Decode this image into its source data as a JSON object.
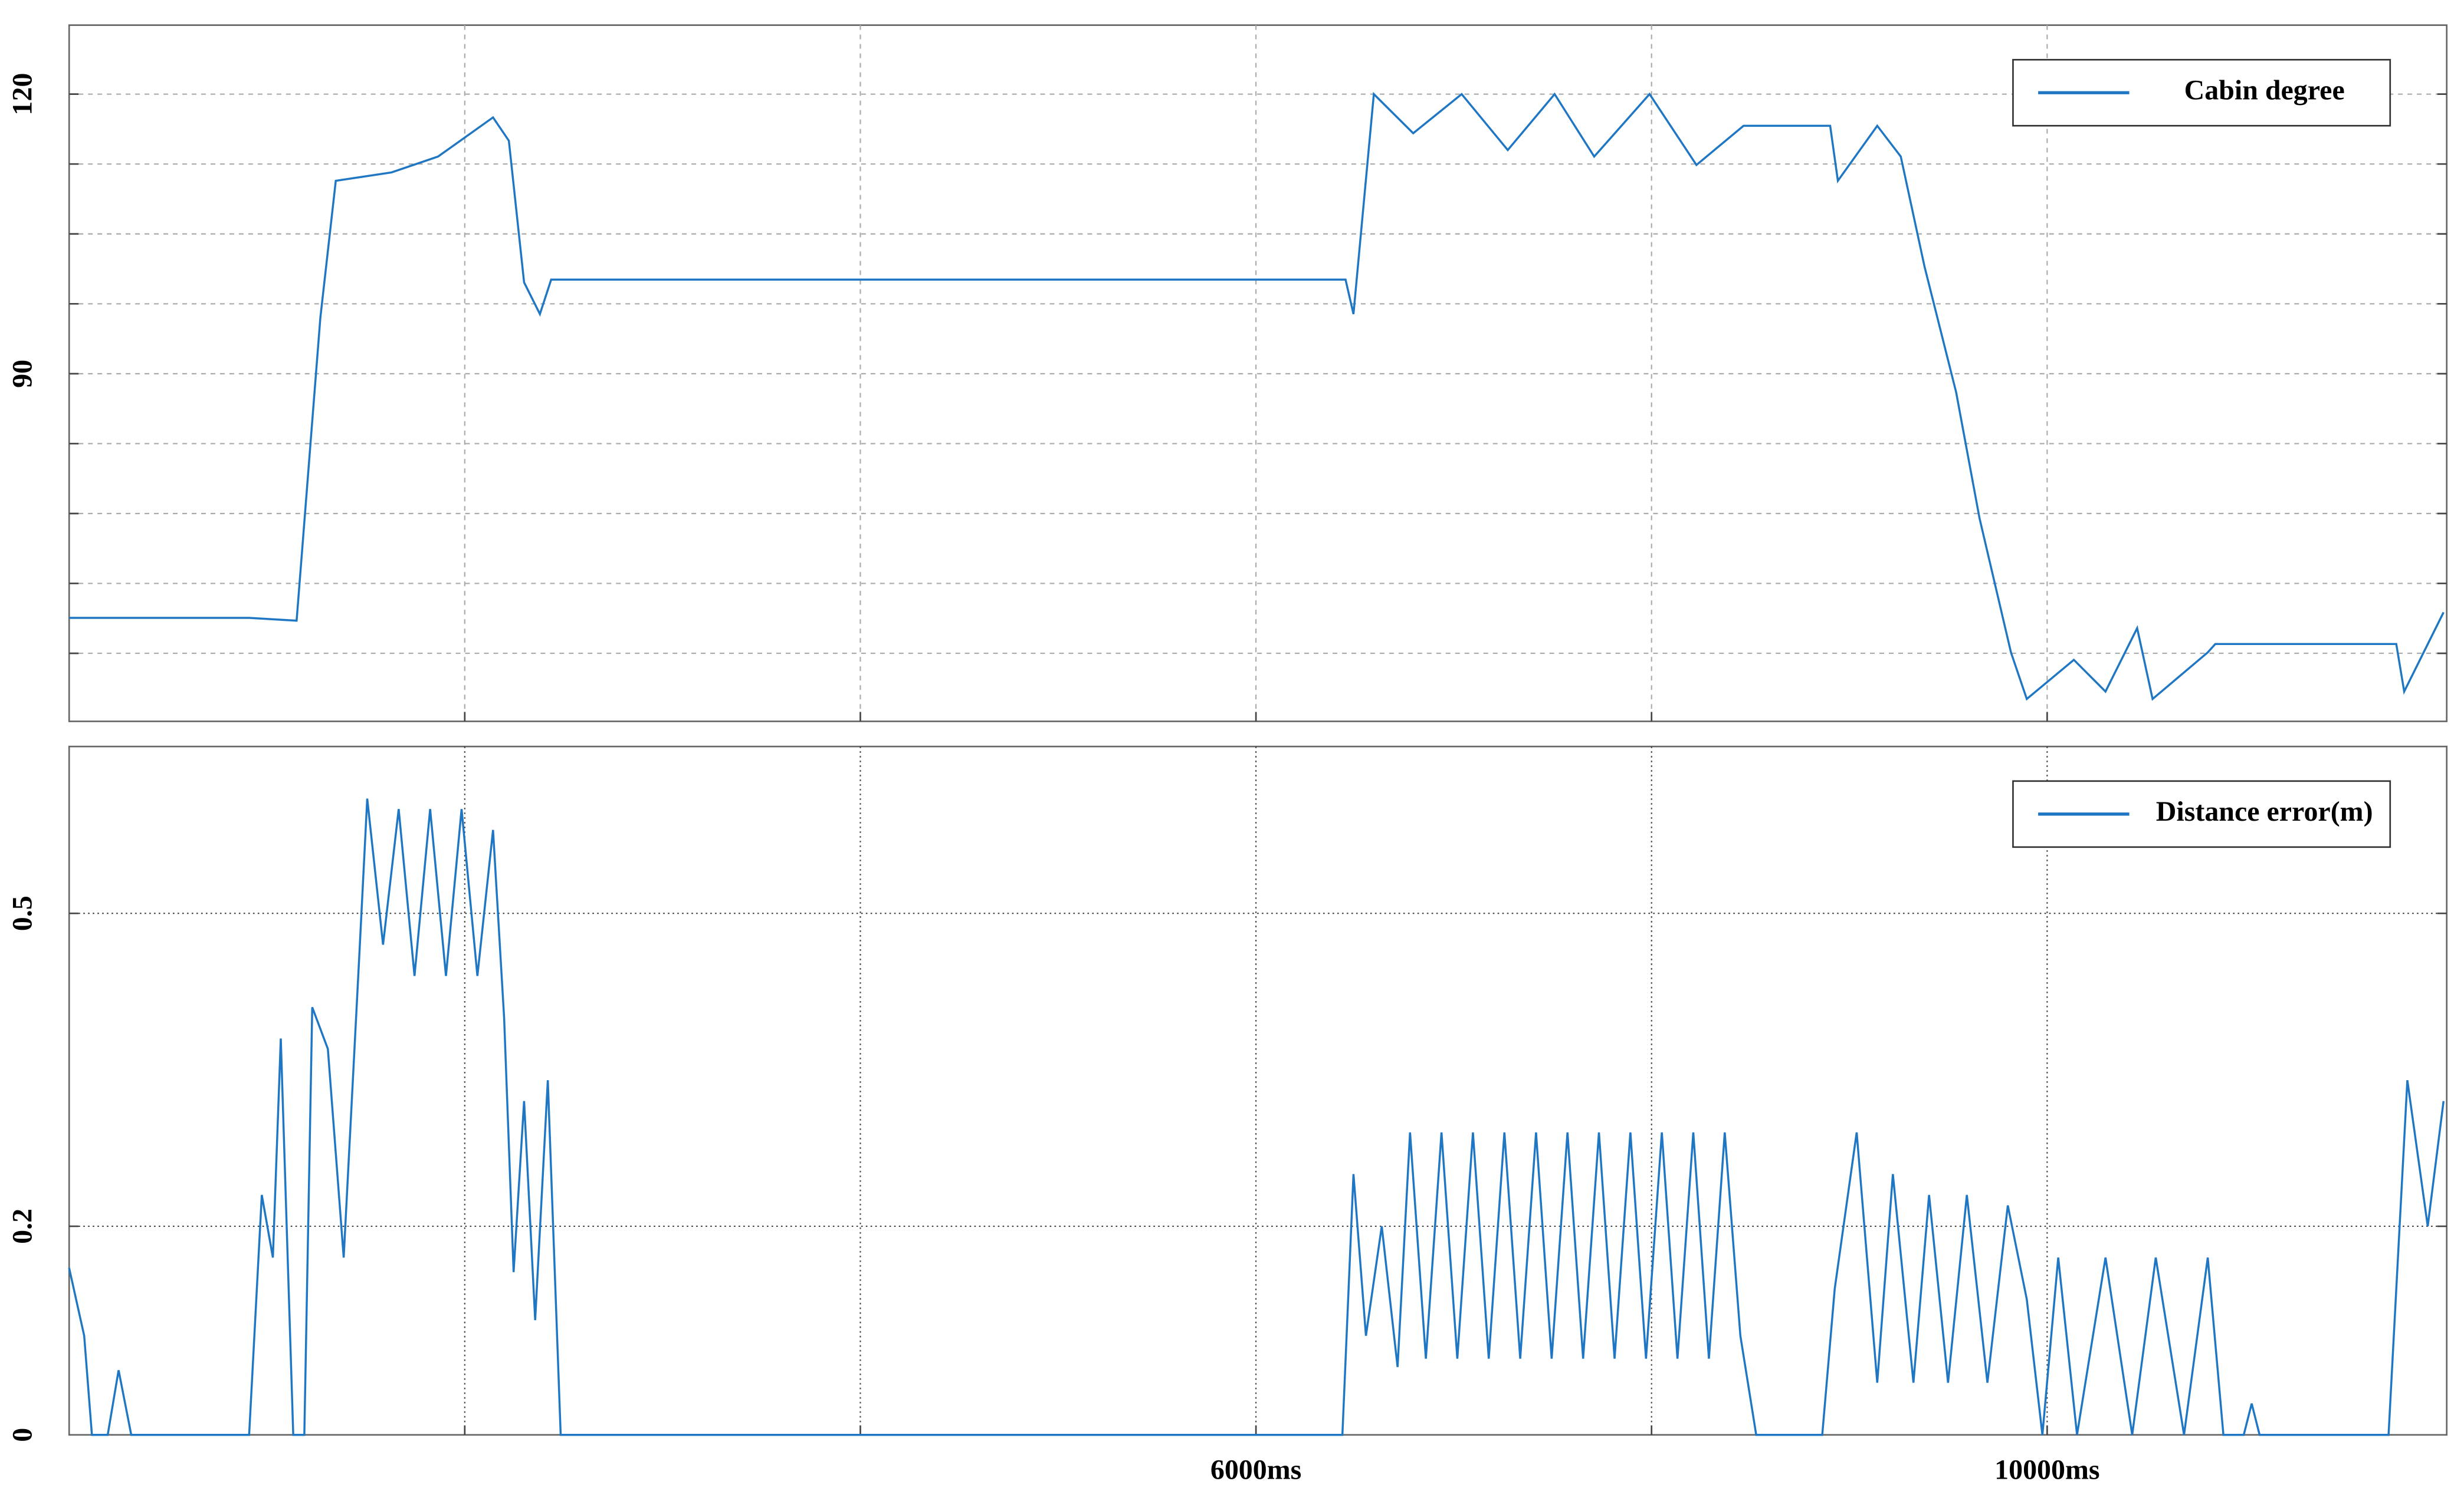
{
  "chart_data": [
    {
      "type": "line",
      "x": [
        0,
        910,
        1150,
        1270,
        1348,
        1630,
        1865,
        2143,
        2223,
        2300,
        2380,
        2437,
        6453,
        6493,
        6596,
        6795,
        7040,
        7273,
        7510,
        7710,
        7990,
        8227,
        8465,
        8903,
        8942,
        9141,
        9260,
        9380,
        9540,
        9658,
        9817,
        9897,
        10135,
        10295,
        10455,
        10533,
        10812,
        10850,
        11765,
        11805,
        12004
      ],
      "series": [
        {
          "name": "Cabin degree",
          "color": "#1f77c4",
          "values": [
            63.8,
            63.8,
            63.5,
            96,
            110.7,
            111.6,
            113.3,
            117.5,
            115,
            99.8,
            96.4,
            100.1,
            100.1,
            96.4,
            120,
            115.8,
            120,
            114,
            120,
            113.3,
            120,
            112.4,
            116.6,
            116.6,
            110.7,
            116.6,
            113.3,
            101.5,
            88,
            74.5,
            60.1,
            55.1,
            59.3,
            55.9,
            62.7,
            55.1,
            60.1,
            61,
            61,
            55.9,
            64.4
          ]
        }
      ],
      "xlim": [
        0,
        12020
      ],
      "xgrid": [
        2000,
        4000,
        6000,
        8000,
        10000
      ],
      "ylim": [
        52.7,
        127.4
      ],
      "yticks": [
        90,
        120
      ],
      "ygrid": [
        60,
        67.5,
        75,
        82.5,
        90,
        97.5,
        105,
        112.5,
        120
      ],
      "legend": "upper right"
    },
    {
      "type": "line",
      "x": [
        0,
        76,
        115,
        195,
        250,
        314,
        910,
        974,
        1030,
        1070,
        1133,
        1189,
        1229,
        1308,
        1388,
        1467,
        1507,
        1587,
        1666,
        1746,
        1825,
        1905,
        1984,
        2064,
        2143,
        2199,
        2247,
        2300,
        2356,
        2420,
        2485,
        6437,
        6493,
        6556,
        6636,
        6716,
        6779,
        6859,
        6938,
        7018,
        7097,
        7177,
        7256,
        7336,
        7416,
        7495,
        7575,
        7654,
        7734,
        7813,
        7893,
        7972,
        8052,
        8131,
        8211,
        8290,
        8370,
        8449,
        8529,
        8863,
        8926,
        9037,
        9141,
        9220,
        9324,
        9403,
        9499,
        9594,
        9698,
        9801,
        9897,
        9976,
        10056,
        10151,
        10295,
        10430,
        10549,
        10692,
        10812,
        10891,
        10994,
        11034,
        11074,
        11726,
        11821,
        11924,
        12004
      ],
      "series": [
        {
          "name": "Distance error(m)",
          "color": "#1f77c4",
          "values": [
            0.16,
            0.095,
            0,
            0,
            0.062,
            0,
            0,
            0.23,
            0.17,
            0.38,
            0,
            0,
            0.41,
            0.37,
            0.17,
            0.46,
            0.61,
            0.47,
            0.6,
            0.44,
            0.6,
            0.44,
            0.6,
            0.44,
            0.58,
            0.4,
            0.156,
            0.32,
            0.11,
            0.34,
            0,
            0,
            0.25,
            0.095,
            0.2,
            0.065,
            0.29,
            0.073,
            0.29,
            0.073,
            0.29,
            0.073,
            0.29,
            0.073,
            0.29,
            0.073,
            0.29,
            0.073,
            0.29,
            0.073,
            0.29,
            0.073,
            0.29,
            0.073,
            0.29,
            0.073,
            0.29,
            0.095,
            0,
            0,
            0.14,
            0.29,
            0.05,
            0.25,
            0.05,
            0.23,
            0.05,
            0.23,
            0.05,
            0.22,
            0.13,
            0,
            0.17,
            0,
            0.17,
            0,
            0.17,
            0,
            0.17,
            0,
            0,
            0.03,
            0,
            0,
            0.34,
            0.2,
            0.32
          ]
        }
      ],
      "xlim": [
        0,
        12020
      ],
      "xgrid": [
        2000,
        4000,
        6000,
        8000,
        10000
      ],
      "xticks": [
        {
          "value": 6000,
          "label": "6000ms"
        },
        {
          "value": 10000,
          "label": "10000ms"
        }
      ],
      "ylim": [
        0,
        0.66
      ],
      "yticks": [
        0,
        0.2,
        0.5
      ],
      "ygrid": [
        0.2,
        0.5
      ],
      "legend": "upper right"
    }
  ]
}
